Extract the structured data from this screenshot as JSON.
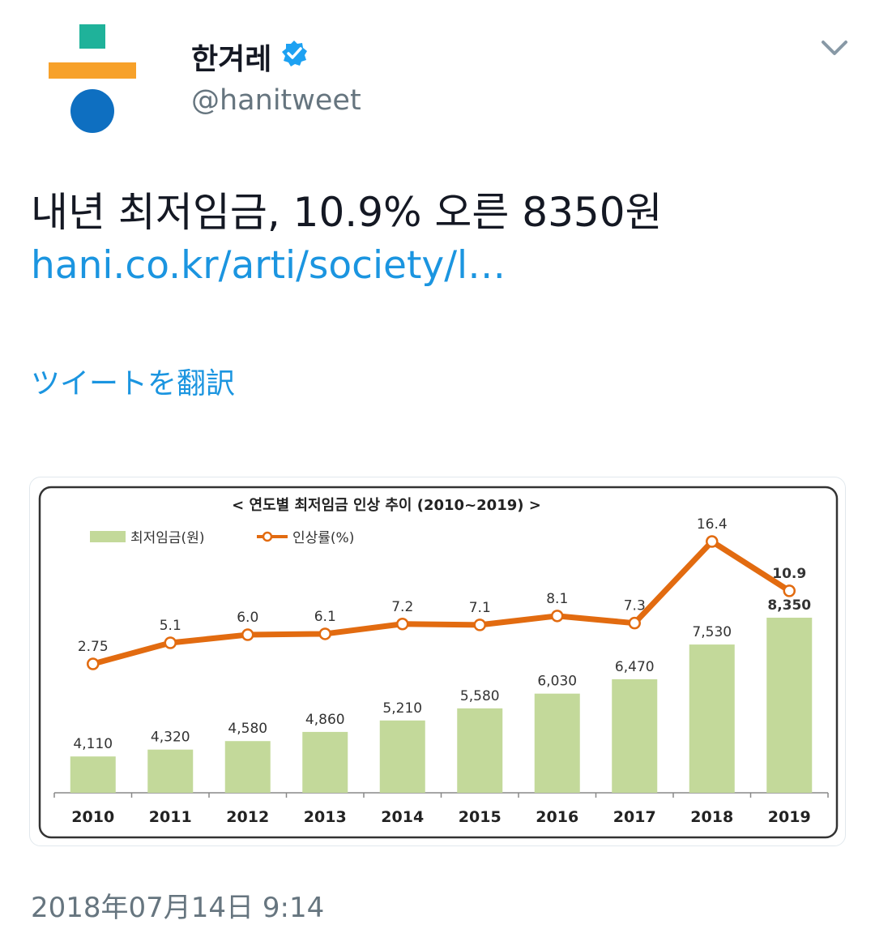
{
  "account": {
    "name": "한겨레",
    "handle": "@hanitweet",
    "verified": true,
    "logo_colors": {
      "square": "#1fb29a",
      "bar": "#f7a12a",
      "circle": "#0e6fc1"
    }
  },
  "tweet": {
    "text": "내년 최저임금, 10.9% 오른 8350원",
    "link_text": "hani.co.kr/arti/society/l…",
    "translate_label": "ツイートを翻訳",
    "timestamp": "2018年07月14日 9:14"
  },
  "icons": {
    "menu": "chevron-down-icon",
    "verified": "verified-badge-icon"
  },
  "chart_data": {
    "type": "bar",
    "title": "< 연도별 최저임금 인상 추이 (2010~2019) >",
    "categories": [
      "2010",
      "2011",
      "2012",
      "2013",
      "2014",
      "2015",
      "2016",
      "2017",
      "2018",
      "2019"
    ],
    "series": [
      {
        "name": "최저임금(원)",
        "type": "bar",
        "color": "#c3d99a",
        "values": [
          4110,
          4320,
          4580,
          4860,
          5210,
          5580,
          6030,
          6470,
          7530,
          8350
        ],
        "labels": [
          "4,110",
          "4,320",
          "4,580",
          "4,860",
          "5,210",
          "5,580",
          "6,030",
          "6,470",
          "7,530",
          "8,350"
        ]
      },
      {
        "name": "인상률(%)",
        "type": "line",
        "color": "#e26b10",
        "values": [
          2.75,
          5.1,
          6.0,
          6.1,
          7.2,
          7.1,
          8.1,
          7.3,
          16.4,
          10.9
        ],
        "labels": [
          "2.75",
          "5.1",
          "6.0",
          "6.1",
          "7.2",
          "7.1",
          "8.1",
          "7.3",
          "16.4",
          "10.9"
        ]
      }
    ],
    "legend": "top-left",
    "grid": false
  }
}
